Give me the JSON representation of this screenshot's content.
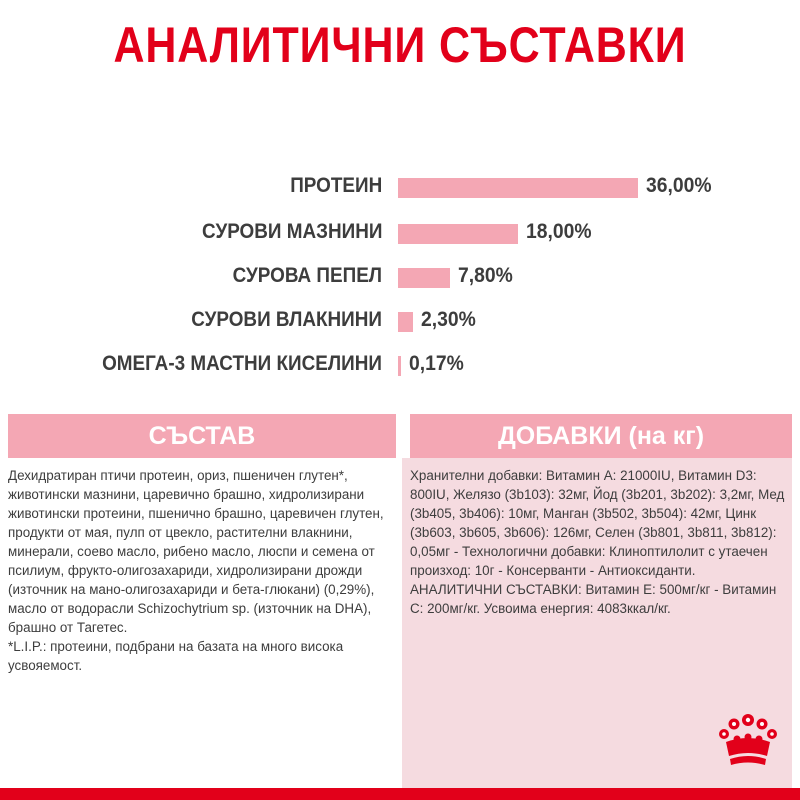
{
  "title": "АНАЛИТИЧНИ СЪСТАВКИ",
  "colors": {
    "accent": "#e2001a",
    "bar": "#f4a7b4",
    "panel": "#f5dbe0",
    "text": "#3d3d3d"
  },
  "chart_data": {
    "type": "bar",
    "orientation": "horizontal",
    "categories": [
      "ПРОТЕИН",
      "СУРОВИ МАЗНИНИ",
      "СУРОВА ПЕПЕЛ",
      "СУРОВИ ВЛАКНИНИ",
      "ОМЕГА-3 МАСТНИ КИСЕЛИНИ"
    ],
    "values": [
      36.0,
      18.0,
      7.8,
      2.3,
      0.17
    ],
    "value_labels": [
      "36,00%",
      "18,00%",
      "7,80%",
      "2,30%",
      "0,17%"
    ]
  },
  "composition": {
    "heading": "СЪСТАВ",
    "text": "Дехидратиран птичи протеин, ориз, пшеничен глутен*, животински мазнини, царевично брашно, хидролизирани животински протеини, пшенично брашно, царевичен глутен, продукти от мая, пулп от цвекло, растителни влакнини, минерали, соево масло, рибено масло, люспи и семена от псилиум, фрукто-олигозахариди, хидролизирани дрожди (източник на мано-олигозахариди и бета-глюкани) (0,29%), масло от водорасли Schizochytrium sp. (източник на DHA), брашно от Тагетес.",
    "footnote": "*L.I.P.: протеини, подбрани на базата на много висока усвояемост."
  },
  "additives": {
    "heading": "ДОБАВКИ (на кг)",
    "text": "Хранителни добавки: Витамин А: 21000IU, Витамин D3: 800IU, Желязо (3b103): 32мг, Йод (3b201, 3b202): 3,2мг, Мед (3b405, 3b406): 10мг, Манган (3b502, 3b504): 42мг, Цинк (3b603, 3b605, 3b606): 126мг, Селен (3b801, 3b811, 3b812): 0,05мг - Технологични добавки: Клиноптилолит с утаечен произход: 10г - Консерванти - Антиоксиданти. АНАЛИТИЧНИ СЪСТАВКИ: Витамин Е: 500мг/кг - Витамин С: 200мг/кг. Усвоима енергия: 4083ккал/кг."
  },
  "logo": {
    "icon": "crown-icon"
  }
}
